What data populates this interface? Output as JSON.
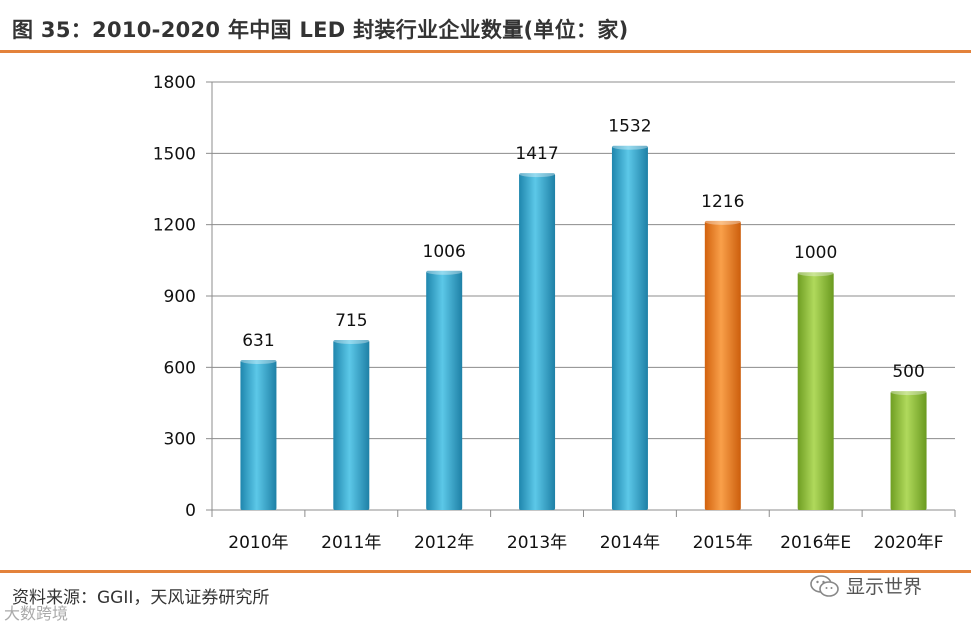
{
  "title": "图 35：2010-2020 年中国 LED 封装行业企业数量(单位：家)",
  "source": "资料来源：GGII，天风证券研究所",
  "watermark_left": "大数跨境",
  "brand": {
    "name": "显示世界",
    "icon": "wechat-icon"
  },
  "colors": {
    "rule": "#e3823b",
    "blue": "#2fa9cf",
    "orange": "#ef8424",
    "green": "#8fbf3a"
  },
  "chart_data": {
    "type": "bar",
    "title": "2010-2020 年中国 LED 封装行业企业数量",
    "xlabel": "",
    "ylabel": "单位：家",
    "ylim": [
      0,
      1800
    ],
    "yticks": [
      0,
      300,
      600,
      900,
      1200,
      1500,
      1800
    ],
    "grid": true,
    "legend": "none",
    "categories": [
      "2010年",
      "2011年",
      "2012年",
      "2013年",
      "2014年",
      "2015年",
      "2016年E",
      "2020年F"
    ],
    "values": [
      631,
      715,
      1006,
      1417,
      1532,
      1216,
      1000,
      500
    ],
    "bar_colors": [
      "blue",
      "blue",
      "blue",
      "blue",
      "blue",
      "orange",
      "green",
      "green"
    ]
  }
}
